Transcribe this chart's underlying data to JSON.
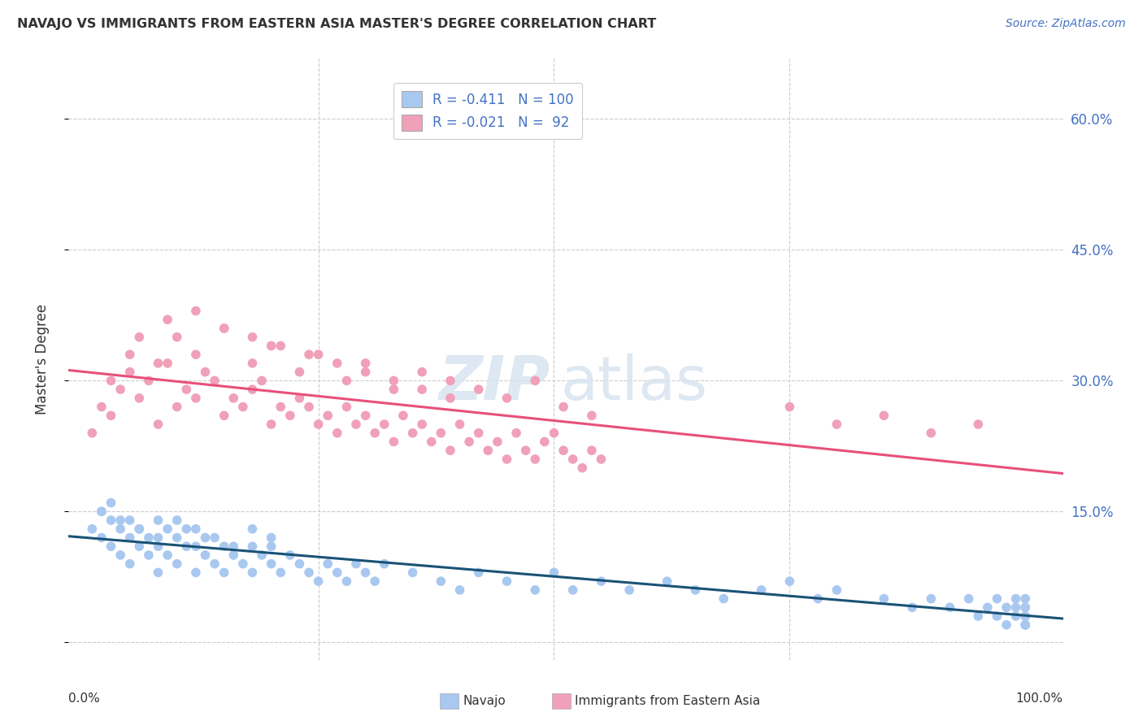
{
  "title": "NAVAJO VS IMMIGRANTS FROM EASTERN ASIA MASTER'S DEGREE CORRELATION CHART",
  "source": "Source: ZipAtlas.com",
  "ylabel": "Master's Degree",
  "legend_label1": "Navajo",
  "legend_label2": "Immigrants from Eastern Asia",
  "r1": "-0.411",
  "n1": "100",
  "r2": "-0.021",
  "n2": "92",
  "ylim_min": -2.0,
  "ylim_max": 67.0,
  "xlim_min": -1.5,
  "xlim_max": 104.0,
  "yticks": [
    0.0,
    15.0,
    30.0,
    45.0,
    60.0
  ],
  "ytick_labels": [
    "",
    "15.0%",
    "30.0%",
    "45.0%",
    "60.0%"
  ],
  "color_blue": "#A8C8F0",
  "color_pink": "#F0A0B8",
  "line_blue": "#1A5276",
  "line_pink": "#E8507A",
  "background": "#FFFFFF",
  "grid_color": "#CCCCCC",
  "navajo_x": [
    1,
    2,
    2,
    3,
    3,
    3,
    4,
    4,
    5,
    5,
    5,
    6,
    6,
    7,
    7,
    8,
    8,
    8,
    9,
    9,
    10,
    10,
    11,
    11,
    12,
    12,
    13,
    13,
    14,
    15,
    15,
    16,
    17,
    18,
    18,
    19,
    20,
    20,
    21,
    22,
    23,
    24,
    25,
    26,
    27,
    28,
    29,
    30,
    31,
    32,
    35,
    38,
    40,
    42,
    45,
    48,
    50,
    52,
    55,
    58,
    62,
    65,
    68,
    72,
    75,
    78,
    80,
    85,
    88,
    90,
    92,
    94,
    95,
    96,
    97,
    97,
    98,
    98,
    99,
    99,
    99,
    100,
    100,
    100,
    100,
    100,
    100,
    100,
    100,
    100,
    2,
    4,
    6,
    8,
    10,
    12,
    14,
    16,
    18,
    20
  ],
  "navajo_y": [
    13,
    12,
    15,
    11,
    14,
    16,
    10,
    13,
    9,
    12,
    14,
    11,
    13,
    10,
    12,
    8,
    11,
    14,
    10,
    13,
    9,
    12,
    11,
    13,
    8,
    11,
    10,
    12,
    9,
    11,
    8,
    10,
    9,
    11,
    8,
    10,
    9,
    11,
    8,
    10,
    9,
    8,
    7,
    9,
    8,
    7,
    9,
    8,
    7,
    9,
    8,
    7,
    6,
    8,
    7,
    6,
    8,
    6,
    7,
    6,
    7,
    6,
    5,
    6,
    7,
    5,
    6,
    5,
    4,
    5,
    4,
    5,
    3,
    4,
    3,
    5,
    2,
    4,
    3,
    4,
    5,
    2,
    3,
    4,
    5,
    3,
    4,
    2,
    3,
    2,
    15,
    14,
    13,
    12,
    14,
    13,
    12,
    11,
    13,
    12
  ],
  "eastern_x": [
    1,
    2,
    3,
    4,
    5,
    6,
    7,
    8,
    9,
    10,
    11,
    12,
    13,
    14,
    15,
    16,
    17,
    18,
    19,
    20,
    21,
    22,
    23,
    24,
    25,
    26,
    27,
    28,
    29,
    30,
    31,
    32,
    33,
    34,
    35,
    36,
    37,
    38,
    39,
    40,
    41,
    42,
    43,
    44,
    45,
    46,
    47,
    48,
    49,
    50,
    51,
    52,
    53,
    54,
    55,
    3,
    5,
    8,
    10,
    12,
    15,
    18,
    20,
    23,
    25,
    28,
    30,
    33,
    36,
    39,
    42,
    45,
    48,
    51,
    54,
    75,
    80,
    85,
    90,
    95,
    6,
    9,
    12,
    15,
    18,
    21,
    24,
    27,
    30,
    33,
    36,
    39
  ],
  "eastern_y": [
    24,
    27,
    26,
    29,
    31,
    28,
    30,
    25,
    32,
    27,
    29,
    28,
    31,
    30,
    26,
    28,
    27,
    29,
    30,
    25,
    27,
    26,
    28,
    27,
    25,
    26,
    24,
    27,
    25,
    26,
    24,
    25,
    23,
    26,
    24,
    25,
    23,
    24,
    22,
    25,
    23,
    24,
    22,
    23,
    21,
    24,
    22,
    21,
    23,
    24,
    22,
    21,
    20,
    22,
    21,
    30,
    33,
    32,
    35,
    33,
    36,
    32,
    34,
    31,
    33,
    30,
    32,
    29,
    31,
    30,
    29,
    28,
    30,
    27,
    26,
    27,
    25,
    26,
    24,
    25,
    35,
    37,
    38,
    36,
    35,
    34,
    33,
    32,
    31,
    30,
    29,
    28
  ]
}
